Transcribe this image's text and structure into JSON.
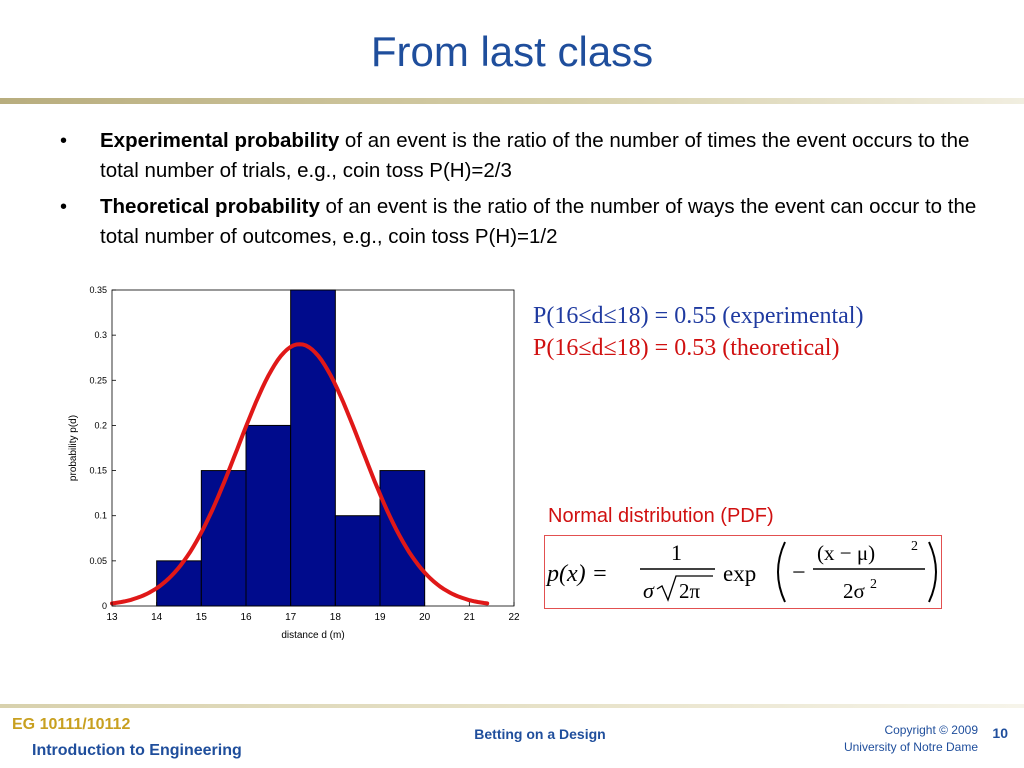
{
  "slide": {
    "title": "From last class",
    "bullets": [
      {
        "bold": "Experimental probability",
        "text": " of an event is the ratio of the number of times the event occurs to the total number of trials, e.g., coin toss P(H)=2/3"
      },
      {
        "bold": "Theoretical probability",
        "text": " of an event is the ratio of the number of ways the event can occur to the total number of outcomes, e.g., coin toss P(H)=1/2"
      }
    ],
    "bullet_symbol": "•",
    "prob_experimental": "P(16≤d≤18) = 0.55 (experimental)",
    "prob_theoretical": "P(16≤d≤18) = 0.53 (theoretical)",
    "normal_label": "Normal distribution (PDF)",
    "formula": {
      "lhs": "p(x) =",
      "numerator": "1",
      "denominator_sigma": "σ",
      "denominator_radicand": "2π",
      "exp": "exp",
      "minus": "−",
      "frac_numerator": "(x − μ)",
      "frac_numerator_power": "2",
      "frac_denominator": "2σ",
      "frac_denominator_power": "2"
    }
  },
  "footer": {
    "course": "EG 10111/10112",
    "course_name": "Introduction to Engineering",
    "center": "Betting on a Design",
    "copyright": "Copyright © 2009",
    "university": "University of Notre Dame",
    "page": "10"
  },
  "colors": {
    "title": "#1f4e9c",
    "bars": "#000b8c",
    "curve": "#e01818",
    "experimental": "#1f3aa0",
    "theoretical": "#d01010"
  },
  "chart_data": {
    "type": "bar",
    "xlabel": "distance d (m)",
    "ylabel": "probability p(d)",
    "xlim": [
      13,
      22
    ],
    "ylim": [
      0,
      0.35
    ],
    "xticks": [
      13,
      14,
      15,
      16,
      17,
      18,
      19,
      20,
      21,
      22
    ],
    "yticks": [
      0,
      0.05,
      0.1,
      0.15,
      0.2,
      0.25,
      0.3,
      0.35
    ],
    "bins": [
      {
        "from": 14,
        "to": 15,
        "value": 0.05
      },
      {
        "from": 15,
        "to": 16,
        "value": 0.15
      },
      {
        "from": 16,
        "to": 17,
        "value": 0.2
      },
      {
        "from": 17,
        "to": 18,
        "value": 0.35
      },
      {
        "from": 18,
        "to": 19,
        "value": 0.1
      },
      {
        "from": 19,
        "to": 20,
        "value": 0.15
      }
    ],
    "curve": {
      "name": "normal pdf fit",
      "mean": 17.2,
      "sigma": 1.38,
      "x_range": [
        13,
        21.4
      ]
    }
  }
}
